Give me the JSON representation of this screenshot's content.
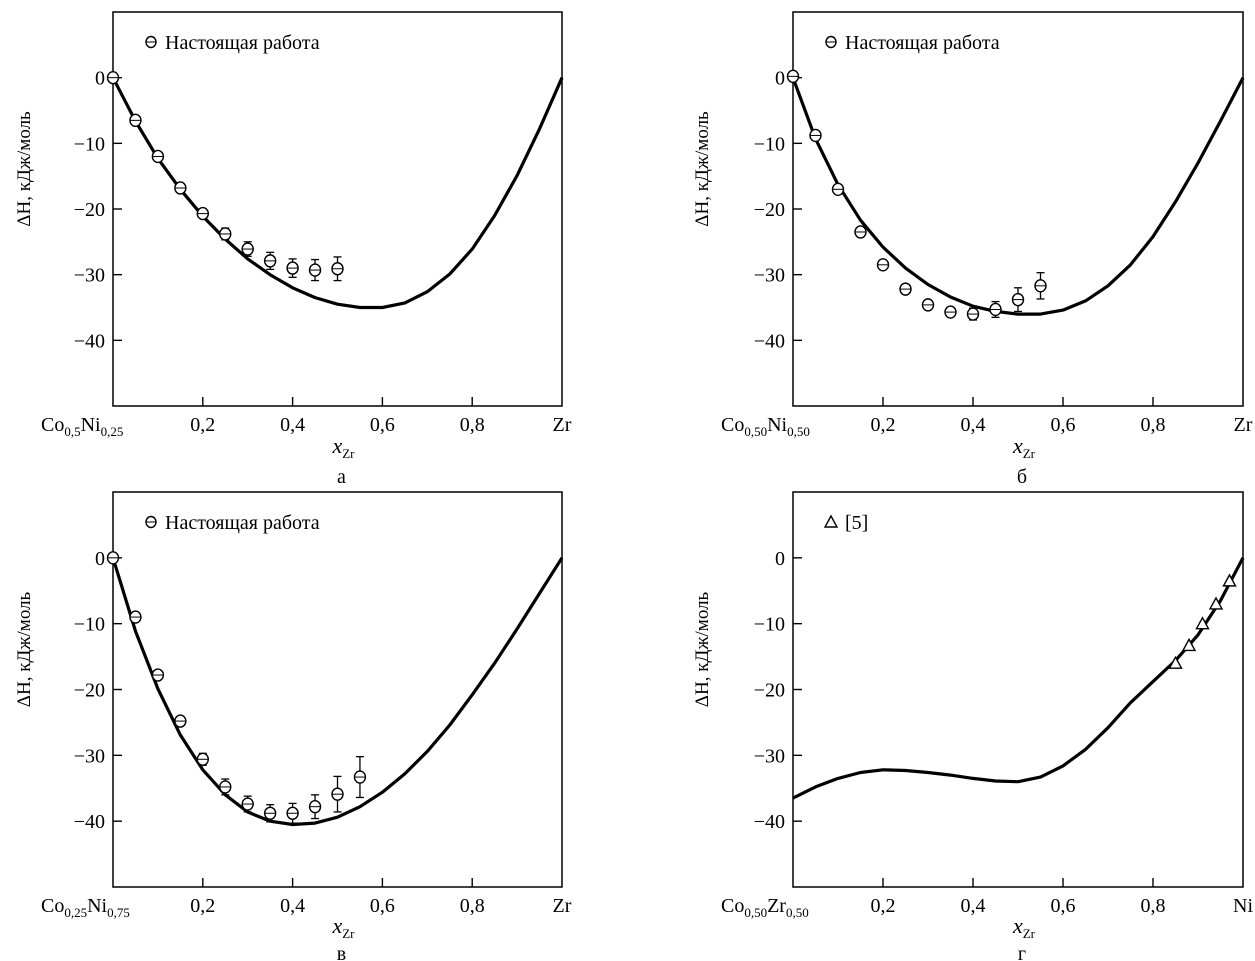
{
  "chart_data": [
    {
      "type": "scatter",
      "panel_letter": "а",
      "legend_label": "Настоящая работа",
      "legend_marker": "circle",
      "xlabel_main": "x",
      "xlabel_sub": "Zr",
      "ylabel": "ΔH, кДж/моль",
      "xlim": [
        0,
        1
      ],
      "ylim": [
        -50,
        10
      ],
      "yticks": [
        0,
        -10,
        -20,
        -30,
        -40
      ],
      "ytick_labels": [
        "0",
        "−10",
        "−20",
        "−30",
        "−40"
      ],
      "xticks": [
        0,
        0.2,
        0.4,
        0.6,
        0.8,
        1.0
      ],
      "xtick_labels": [
        "",
        "0,2",
        "0,4",
        "0,6",
        "0,8",
        "Zr"
      ],
      "x_start_label": {
        "parts": [
          [
            "Co",
            ""
          ],
          [
            "0,5",
            "sub"
          ],
          [
            "Ni",
            ""
          ],
          [
            "0,25",
            "sub"
          ]
        ]
      },
      "series": [
        {
          "marker": "circle",
          "points": [
            {
              "x": 0.0,
              "y": 0.0,
              "err": 0
            },
            {
              "x": 0.05,
              "y": -6.5,
              "err": 0.3
            },
            {
              "x": 0.1,
              "y": -12.0,
              "err": 0.3
            },
            {
              "x": 0.15,
              "y": -16.8,
              "err": 0.3
            },
            {
              "x": 0.2,
              "y": -20.7,
              "err": 0.6
            },
            {
              "x": 0.25,
              "y": -23.8,
              "err": 0.9
            },
            {
              "x": 0.3,
              "y": -26.1,
              "err": 1.1
            },
            {
              "x": 0.35,
              "y": -27.9,
              "err": 1.3
            },
            {
              "x": 0.4,
              "y": -29.0,
              "err": 1.4
            },
            {
              "x": 0.45,
              "y": -29.3,
              "err": 1.6
            },
            {
              "x": 0.5,
              "y": -29.1,
              "err": 1.8
            }
          ]
        }
      ],
      "curve": [
        [
          0.0,
          0.0
        ],
        [
          0.05,
          -6.6
        ],
        [
          0.1,
          -12.3
        ],
        [
          0.15,
          -17.0
        ],
        [
          0.2,
          -21.1
        ],
        [
          0.25,
          -24.6
        ],
        [
          0.3,
          -27.6
        ],
        [
          0.35,
          -30.0
        ],
        [
          0.4,
          -32.0
        ],
        [
          0.45,
          -33.5
        ],
        [
          0.5,
          -34.5
        ],
        [
          0.55,
          -35.0
        ],
        [
          0.6,
          -35.0
        ],
        [
          0.65,
          -34.3
        ],
        [
          0.7,
          -32.6
        ],
        [
          0.75,
          -29.9
        ],
        [
          0.8,
          -26.1
        ],
        [
          0.85,
          -21.0
        ],
        [
          0.9,
          -14.9
        ],
        [
          0.95,
          -7.8
        ],
        [
          1.0,
          0.0
        ]
      ]
    },
    {
      "type": "scatter",
      "panel_letter": "б",
      "legend_label": "Настоящая работа",
      "legend_marker": "circle",
      "xlabel_main": "x",
      "xlabel_sub": "Zr",
      "ylabel": "ΔH, кДж/моль",
      "xlim": [
        0,
        1
      ],
      "ylim": [
        -50,
        10
      ],
      "yticks": [
        0,
        -10,
        -20,
        -30,
        -40
      ],
      "ytick_labels": [
        "0",
        "−10",
        "−20",
        "−30",
        "−40"
      ],
      "xticks": [
        0,
        0.2,
        0.4,
        0.6,
        0.8,
        1.0
      ],
      "xtick_labels": [
        "",
        "0,2",
        "0,4",
        "0,6",
        "0,8",
        "Zr"
      ],
      "x_start_label": {
        "parts": [
          [
            "Co",
            ""
          ],
          [
            "0,50",
            "sub"
          ],
          [
            "Ni",
            ""
          ],
          [
            "0,50",
            "sub"
          ]
        ]
      },
      "series": [
        {
          "marker": "circle",
          "points": [
            {
              "x": 0.0,
              "y": 0.2,
              "err": 0
            },
            {
              "x": 0.05,
              "y": -8.8,
              "err": 0.3
            },
            {
              "x": 0.1,
              "y": -17.0,
              "err": 0.3
            },
            {
              "x": 0.15,
              "y": -23.5,
              "err": 0.3
            },
            {
              "x": 0.2,
              "y": -28.5,
              "err": 0.4
            },
            {
              "x": 0.25,
              "y": -32.2,
              "err": 0.5
            },
            {
              "x": 0.3,
              "y": -34.6,
              "err": 0.6
            },
            {
              "x": 0.35,
              "y": -35.7,
              "err": 0.7
            },
            {
              "x": 0.4,
              "y": -36.0,
              "err": 0.9
            },
            {
              "x": 0.45,
              "y": -35.3,
              "err": 1.2
            },
            {
              "x": 0.5,
              "y": -33.8,
              "err": 1.8
            },
            {
              "x": 0.55,
              "y": -31.7,
              "err": 2.0
            }
          ]
        }
      ],
      "curve": [
        [
          0.0,
          0.0
        ],
        [
          0.05,
          -9.3
        ],
        [
          0.1,
          -16.3
        ],
        [
          0.15,
          -21.7
        ],
        [
          0.2,
          -25.8
        ],
        [
          0.25,
          -29.0
        ],
        [
          0.3,
          -31.5
        ],
        [
          0.35,
          -33.4
        ],
        [
          0.4,
          -34.8
        ],
        [
          0.45,
          -35.6
        ],
        [
          0.5,
          -36.0
        ],
        [
          0.55,
          -36.0
        ],
        [
          0.6,
          -35.4
        ],
        [
          0.65,
          -34.0
        ],
        [
          0.7,
          -31.7
        ],
        [
          0.75,
          -28.5
        ],
        [
          0.8,
          -24.2
        ],
        [
          0.85,
          -18.9
        ],
        [
          0.9,
          -13.0
        ],
        [
          0.95,
          -6.6
        ],
        [
          1.0,
          0.0
        ]
      ]
    },
    {
      "type": "scatter",
      "panel_letter": "в",
      "legend_label": "Настоящая работа",
      "legend_marker": "circle",
      "xlabel_main": "x",
      "xlabel_sub": "Zr",
      "ylabel": "ΔH, кДж/моль",
      "xlim": [
        0,
        1
      ],
      "ylim": [
        -50,
        10
      ],
      "yticks": [
        0,
        -10,
        -20,
        -30,
        -40
      ],
      "ytick_labels": [
        "0",
        "−10",
        "−20",
        "−30",
        "−40"
      ],
      "xticks": [
        0,
        0.2,
        0.4,
        0.6,
        0.8,
        1.0
      ],
      "xtick_labels": [
        "",
        "0,2",
        "0,4",
        "0,6",
        "0,8",
        "Zr"
      ],
      "x_start_label": {
        "parts": [
          [
            "Co",
            ""
          ],
          [
            "0,25",
            "sub"
          ],
          [
            "Ni",
            ""
          ],
          [
            "0,75",
            "sub"
          ]
        ]
      },
      "series": [
        {
          "marker": "circle",
          "points": [
            {
              "x": 0.0,
              "y": 0.0,
              "err": 0
            },
            {
              "x": 0.05,
              "y": -9.0,
              "err": 0.4
            },
            {
              "x": 0.1,
              "y": -17.8,
              "err": 0.4
            },
            {
              "x": 0.15,
              "y": -24.8,
              "err": 0.6
            },
            {
              "x": 0.2,
              "y": -30.6,
              "err": 0.9
            },
            {
              "x": 0.25,
              "y": -34.8,
              "err": 1.2
            },
            {
              "x": 0.3,
              "y": -37.4,
              "err": 1.2
            },
            {
              "x": 0.35,
              "y": -38.8,
              "err": 1.3
            },
            {
              "x": 0.4,
              "y": -38.8,
              "err": 1.5
            },
            {
              "x": 0.45,
              "y": -37.8,
              "err": 1.8
            },
            {
              "x": 0.5,
              "y": -35.9,
              "err": 2.7
            },
            {
              "x": 0.55,
              "y": -33.3,
              "err": 3.1
            }
          ]
        }
      ],
      "curve": [
        [
          0.0,
          0.0
        ],
        [
          0.05,
          -11.1
        ],
        [
          0.1,
          -19.9
        ],
        [
          0.15,
          -26.9
        ],
        [
          0.2,
          -32.2
        ],
        [
          0.25,
          -36.0
        ],
        [
          0.3,
          -38.6
        ],
        [
          0.35,
          -40.0
        ],
        [
          0.4,
          -40.5
        ],
        [
          0.45,
          -40.3
        ],
        [
          0.5,
          -39.4
        ],
        [
          0.55,
          -37.8
        ],
        [
          0.6,
          -35.6
        ],
        [
          0.65,
          -32.8
        ],
        [
          0.7,
          -29.4
        ],
        [
          0.75,
          -25.4
        ],
        [
          0.8,
          -20.8
        ],
        [
          0.85,
          -16.0
        ],
        [
          0.9,
          -10.8
        ],
        [
          0.95,
          -5.4
        ],
        [
          1.0,
          0.0
        ]
      ]
    },
    {
      "type": "scatter",
      "panel_letter": "г",
      "legend_label": "[5]",
      "legend_marker": "triangle",
      "xlabel_main": "x",
      "xlabel_sub": "Zr",
      "ylabel": "ΔH, кДж/моль",
      "xlim": [
        0,
        1
      ],
      "ylim": [
        -50,
        10
      ],
      "yticks": [
        0,
        -10,
        -20,
        -30,
        -40
      ],
      "ytick_labels": [
        "0",
        "−10",
        "−20",
        "−30",
        "−40"
      ],
      "xticks": [
        0,
        0.2,
        0.4,
        0.6,
        0.8,
        1.0
      ],
      "xtick_labels": [
        "",
        "0,2",
        "0,4",
        "0,6",
        "0,8",
        "Ni"
      ],
      "x_start_label": {
        "parts": [
          [
            "Co",
            ""
          ],
          [
            "0,50",
            "sub"
          ],
          [
            "Zr",
            ""
          ],
          [
            "0,50",
            "sub"
          ]
        ]
      },
      "series": [
        {
          "marker": "triangle",
          "points": [
            {
              "x": 0.85,
              "y": -16.0,
              "err": 0
            },
            {
              "x": 0.88,
              "y": -13.3,
              "err": 0
            },
            {
              "x": 0.91,
              "y": -10.0,
              "err": 0
            },
            {
              "x": 0.94,
              "y": -7.0,
              "err": 0
            },
            {
              "x": 0.97,
              "y": -3.5,
              "err": 0
            }
          ]
        }
      ],
      "curve": [
        [
          0.0,
          -36.5
        ],
        [
          0.05,
          -34.8
        ],
        [
          0.1,
          -33.5
        ],
        [
          0.15,
          -32.6
        ],
        [
          0.2,
          -32.2
        ],
        [
          0.25,
          -32.3
        ],
        [
          0.3,
          -32.6
        ],
        [
          0.35,
          -33.0
        ],
        [
          0.4,
          -33.5
        ],
        [
          0.45,
          -33.9
        ],
        [
          0.5,
          -34.0
        ],
        [
          0.55,
          -33.3
        ],
        [
          0.6,
          -31.6
        ],
        [
          0.65,
          -29.1
        ],
        [
          0.7,
          -25.8
        ],
        [
          0.75,
          -22.0
        ],
        [
          0.8,
          -18.8
        ],
        [
          0.85,
          -15.6
        ],
        [
          0.9,
          -11.7
        ],
        [
          0.95,
          -6.5
        ],
        [
          1.0,
          0.0
        ]
      ]
    }
  ]
}
